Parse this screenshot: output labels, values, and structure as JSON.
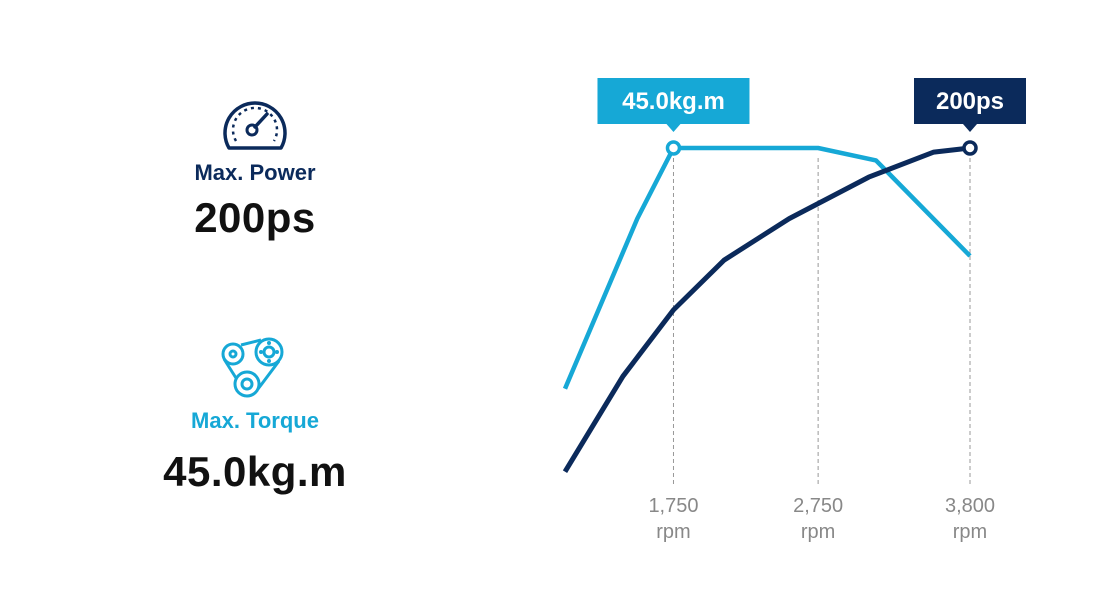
{
  "specs": {
    "power": {
      "label": "Max. Power",
      "value": "200ps",
      "icon": "speedometer-icon"
    },
    "torque": {
      "label": "Max. Torque",
      "value": "45.0kg.m",
      "icon": "belt-pulley-icon"
    }
  },
  "colors": {
    "power": "#0b2a5b",
    "torque": "#16a8d6",
    "tick_text": "#888888",
    "guide": "#999999"
  },
  "chart_data": {
    "type": "line",
    "title": "",
    "xlabel": "",
    "ylabel": "",
    "grid": false,
    "ticks": [
      {
        "rpm": 1750,
        "value": "1,750",
        "unit": "rpm"
      },
      {
        "rpm": 2750,
        "value": "2,750",
        "unit": "rpm"
      },
      {
        "rpm": 3800,
        "value": "3,800",
        "unit": "rpm"
      }
    ],
    "series": [
      {
        "id": "torque",
        "points": [
          [
            1000,
            0.22
          ],
          [
            1500,
            0.63
          ],
          [
            1750,
            0.8
          ],
          [
            2750,
            0.8
          ],
          [
            3150,
            0.77
          ],
          [
            3800,
            0.54
          ]
        ],
        "peak_rpm": 1750,
        "callout": "45.0kg.m"
      },
      {
        "id": "power",
        "points": [
          [
            1000,
            0.02
          ],
          [
            1400,
            0.25
          ],
          [
            1750,
            0.41
          ],
          [
            2100,
            0.53
          ],
          [
            2550,
            0.63
          ],
          [
            3100,
            0.73
          ],
          [
            3550,
            0.79
          ],
          [
            3800,
            0.8
          ]
        ],
        "peak_rpm": 3800,
        "callout": "200ps"
      }
    ]
  }
}
